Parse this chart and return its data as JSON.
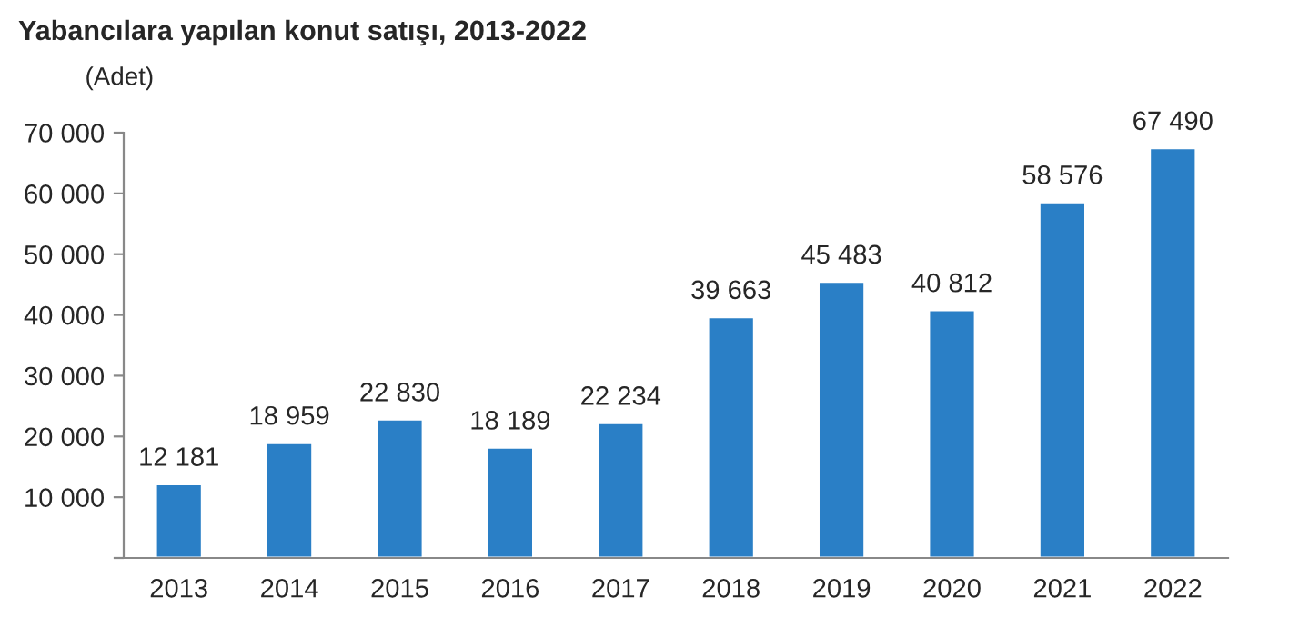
{
  "chart_data": {
    "type": "bar",
    "title": "Yabancılara yapılan konut satışı, 2013-2022",
    "ylabel": "(Adet)",
    "categories": [
      "2013",
      "2014",
      "2015",
      "2016",
      "2017",
      "2018",
      "2019",
      "2020",
      "2021",
      "2022"
    ],
    "values": [
      12181,
      18959,
      22830,
      18189,
      22234,
      39663,
      45483,
      40812,
      58576,
      67490
    ],
    "value_labels": [
      "12 181",
      "18 959",
      "22 830",
      "18 189",
      "22 234",
      "39 663",
      "45 483",
      "40 812",
      "58 576",
      "67 490"
    ],
    "color": "#2a7fc6",
    "ylim": [
      0,
      70000
    ],
    "yticks": [
      {
        "value": 0,
        "label": null
      },
      {
        "value": 10000,
        "label": "10 000"
      },
      {
        "value": 20000,
        "label": "20 000"
      },
      {
        "value": 30000,
        "label": "30 000"
      },
      {
        "value": 40000,
        "label": "40 000"
      },
      {
        "value": 50000,
        "label": "50 000"
      },
      {
        "value": 60000,
        "label": "60 000"
      },
      {
        "value": 70000,
        "label": "70 000"
      }
    ],
    "grid": false,
    "legend": false
  }
}
